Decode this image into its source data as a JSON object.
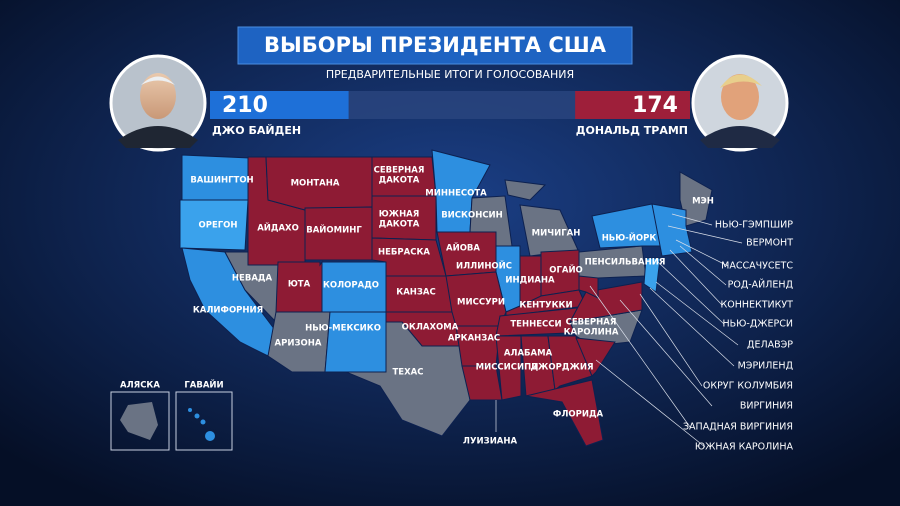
{
  "header": {
    "title": "ВЫБОРЫ ПРЕЗИДЕНТА США",
    "subtitle": "ПРЕДВАРИТЕЛЬНЫЕ ИТОГИ ГОЛОСОВАНИЯ"
  },
  "candidates": [
    {
      "name": "ДЖО БАЙДЕН",
      "votes": 210
    },
    {
      "name": "ДОНАЛЬД ТРАМП",
      "votes": 174
    }
  ],
  "map_labels": [
    "ВАШИНГТОН",
    "ОРЕГОН",
    "КАЛИФОРНИЯ",
    "НЕВАДА",
    "АЙДАХО",
    "МОНТАНА",
    "ВАЙОМИНГ",
    "ЮТА",
    "КОЛОРАДО",
    "АРИЗОНА",
    "НЬЮ-МЕКСИКО",
    [
      "СЕВЕРНАЯ",
      "ДАКОТА"
    ],
    [
      "ЮЖНАЯ",
      "ДАКОТА"
    ],
    "НЕБРАСКА",
    "КАНЗАС",
    "ОКЛАХОМА",
    "ТЕХАС",
    "МИННЕСОТА",
    "АЙОВА",
    "ВИСКОНСИН",
    "МИЧИГАН",
    "ИЛЛИНОЙС",
    "МИССУРИ",
    "АРКАНЗАС",
    "ИНДИАНА",
    "ОГАЙО",
    "КЕНТУККИ",
    "ТЕННЕССИ",
    "МИССИСИПИ",
    "АЛАБАМА",
    "ДЖОРДЖИЯ",
    [
      "СЕВЕРНАЯ",
      "КАРОЛИНА"
    ],
    "ФЛОРИДА",
    "ЛУИЗИАНА",
    "ПЕНСИЛЬВАНИЯ",
    "НЬЮ-ЙОРК",
    "МЭН"
  ],
  "callout_labels": [
    "НЬЮ-ГЭМПШИР",
    "ВЕРМОНТ",
    "МАССАЧУСЕТС",
    "РОД-АЙЛЕНД",
    "КОННЕКТИКУТ",
    "НЬЮ-ДЖЕРСИ",
    "ДЕЛАВЭР",
    "МЭРИЛЕНД",
    "ОКРУГ КОЛУМБИЯ",
    "ВИРГИНИЯ",
    "ЗАПАДНАЯ ВИРГИНИЯ",
    "ЮЖНАЯ КАРОЛИНА"
  ],
  "insets": [
    "АЛЯСКА",
    "ГАВАЙИ"
  ]
}
